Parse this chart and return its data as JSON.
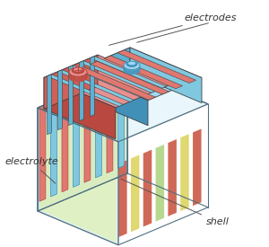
{
  "background_color": "#ffffff",
  "label_electrodes": "electrodes",
  "label_electrolyte": "electrolyte",
  "label_shell": "shell",
  "color_red_light": "#e07870",
  "color_red_mid": "#d06058",
  "color_red_dark": "#b84840",
  "color_red_top": "#e89090",
  "color_blue_light": "#80c8e0",
  "color_blue_mid": "#60b0d0",
  "color_blue_dark": "#4090b8",
  "color_blue_top": "#a0d8f0",
  "color_shell_left": "#c8e8f4",
  "color_shell_front": "#b0d8ec",
  "color_shell_top": "#d8f0f8",
  "color_shell_outline": "#507080",
  "color_elec_left": "#e0f0c0",
  "color_elec_front": "#d8ecc0",
  "color_plate_red": "#d06858",
  "color_plate_blue": "#70b8d0",
  "color_plate_yellow": "#e0d870",
  "color_plate_green": "#b8d890",
  "color_outline": "#404040",
  "font_size_label": 8,
  "font_style": "italic"
}
